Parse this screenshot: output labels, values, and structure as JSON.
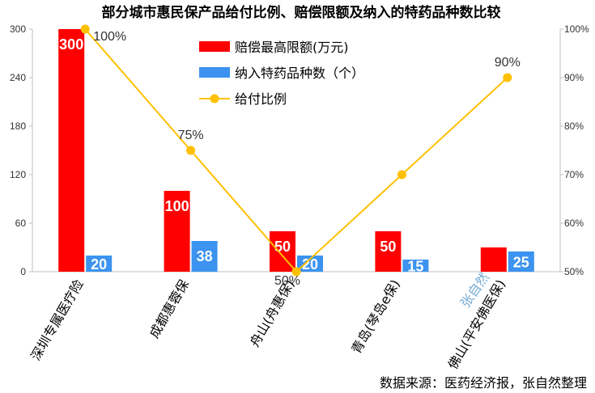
{
  "chart_data": {
    "type": "bar",
    "title": "部分城市惠民保产品给付比例、赔偿限额及纳入的特药品种数比较",
    "categories": [
      "深圳专属医疗险",
      "成都惠蓉保",
      "舟山(舟惠保)",
      "青岛(琴岛e保)",
      "佛山(平安佛医保)"
    ],
    "series": [
      {
        "name": "赔偿最高限额(万元)",
        "type": "bar",
        "axis": "left",
        "color": "#ff0000",
        "values": [
          300,
          100,
          50,
          50,
          30
        ],
        "labels": [
          "300",
          "100",
          "50",
          "50",
          ""
        ]
      },
      {
        "name": "纳入特药品种数（个）",
        "type": "bar",
        "axis": "left",
        "color": "#3c93f0",
        "values": [
          20,
          38,
          20,
          15,
          25
        ],
        "labels": [
          "20",
          "38",
          "20",
          "15",
          "25"
        ]
      },
      {
        "name": "给付比例",
        "type": "line",
        "axis": "right",
        "color": "#ffc000",
        "values": [
          100,
          75,
          50,
          70,
          90
        ],
        "labels": [
          "100%",
          "75%",
          "50%",
          "",
          "90%"
        ]
      }
    ],
    "y_left": {
      "min": 0,
      "max": 300,
      "ticks": [
        "0",
        "60",
        "120",
        "180",
        "240",
        "300"
      ]
    },
    "y_right": {
      "min": 50,
      "max": 100,
      "ticks": [
        "50%",
        "60%",
        "70%",
        "80%",
        "90%",
        "100%"
      ]
    },
    "legend": "top-center",
    "grid": false
  },
  "source_note": "数据来源：医药经济报，张自然整理",
  "watermark": "张自然"
}
